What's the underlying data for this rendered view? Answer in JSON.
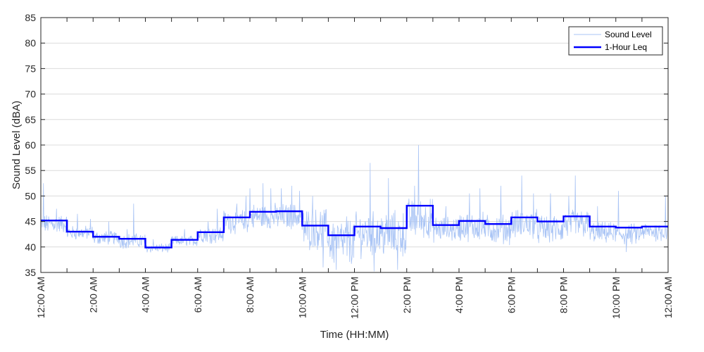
{
  "chart_data": {
    "type": "line",
    "title": "",
    "xlabel": "Time (HH:MM)",
    "ylabel": "Sound Level (dBA)",
    "xlim": [
      0,
      24
    ],
    "ylim": [
      35,
      85
    ],
    "x_unit": "hours since 12:00 AM",
    "y_ticks": [
      35,
      40,
      45,
      50,
      55,
      60,
      65,
      70,
      75,
      80,
      85
    ],
    "x_ticks": [
      0,
      2,
      4,
      6,
      8,
      10,
      12,
      14,
      16,
      18,
      20,
      22,
      24
    ],
    "x_tick_labels": [
      "12:00 AM",
      "2:00 AM",
      "4:00 AM",
      "6:00 AM",
      "8:00 AM",
      "10:00 AM",
      "12:00 PM",
      "2:00 PM",
      "4:00 PM",
      "6:00 PM",
      "8:00 PM",
      "10:00 PM",
      "12:00 AM"
    ],
    "grid": true,
    "legend_position": "top-right",
    "legend": [
      "Sound Level",
      "1-Hour Leq"
    ],
    "series": [
      {
        "name": "Sound Level",
        "type": "line",
        "color": "#a9c4f5",
        "hourly_profile": [
          {
            "hour": 0,
            "base": 44.5,
            "spread": 1.6,
            "spikes": [
              [
                0.1,
                52.5
              ],
              [
                0.6,
                47.5
              ]
            ]
          },
          {
            "hour": 1,
            "base": 42.8,
            "spread": 1.2,
            "spikes": [
              [
                0.4,
                46.5
              ],
              [
                0.9,
                45.5
              ]
            ]
          },
          {
            "hour": 2,
            "base": 41.8,
            "spread": 1.2,
            "spikes": [
              [
                0.6,
                45.0
              ]
            ]
          },
          {
            "hour": 3,
            "base": 41.2,
            "spread": 1.3,
            "spikes": [
              [
                0.55,
                48.5
              ],
              [
                0.3,
                43.5
              ]
            ]
          },
          {
            "hour": 4,
            "base": 39.8,
            "spread": 0.8,
            "spikes": [
              [
                0.3,
                41.5
              ]
            ]
          },
          {
            "hour": 5,
            "base": 41.2,
            "spread": 0.9,
            "spikes": [
              [
                0.5,
                43.5
              ]
            ]
          },
          {
            "hour": 6,
            "base": 42.5,
            "spread": 1.5,
            "spikes": [
              [
                0.4,
                45.0
              ],
              [
                0.75,
                47.5
              ]
            ]
          },
          {
            "hour": 7,
            "base": 45.0,
            "spread": 2.0,
            "spikes": [
              [
                0.5,
                48.5
              ],
              [
                0.85,
                50.0
              ]
            ]
          },
          {
            "hour": 8,
            "base": 46.0,
            "spread": 2.2,
            "spikes": [
              [
                0.0,
                51.5
              ],
              [
                0.5,
                52.5
              ],
              [
                0.8,
                51.5
              ]
            ]
          },
          {
            "hour": 9,
            "base": 46.0,
            "spread": 2.2,
            "spikes": [
              [
                0.2,
                51.5
              ],
              [
                0.6,
                52.0
              ],
              [
                0.9,
                51.0
              ]
            ]
          },
          {
            "hour": 10,
            "base": 43.5,
            "spread": 3.5,
            "spikes": [
              [
                0.4,
                50.0
              ],
              [
                0.8,
                36.0
              ]
            ]
          },
          {
            "hour": 11,
            "base": 41.0,
            "spread": 4.0,
            "spikes": [
              [
                0.3,
                35.5
              ],
              [
                0.7,
                46.0
              ]
            ]
          },
          {
            "hour": 12,
            "base": 42.5,
            "spread": 3.8,
            "spikes": [
              [
                0.6,
                56.5
              ],
              [
                0.75,
                35.2
              ]
            ]
          },
          {
            "hour": 13,
            "base": 42.5,
            "spread": 4.0,
            "spikes": [
              [
                0.3,
                53.5
              ],
              [
                0.65,
                35.5
              ]
            ]
          },
          {
            "hour": 14,
            "base": 45.5,
            "spread": 3.5,
            "spikes": [
              [
                0.45,
                60.0
              ],
              [
                0.3,
                52.0
              ]
            ]
          },
          {
            "hour": 15,
            "base": 43.5,
            "spread": 2.2,
            "spikes": [
              [
                0.5,
                48.0
              ]
            ]
          },
          {
            "hour": 16,
            "base": 44.0,
            "spread": 2.5,
            "spikes": [
              [
                0.4,
                50.5
              ],
              [
                0.8,
                51.5
              ]
            ]
          },
          {
            "hour": 17,
            "base": 43.5,
            "spread": 2.5,
            "spikes": [
              [
                0.6,
                52.0
              ]
            ]
          },
          {
            "hour": 18,
            "base": 44.5,
            "spread": 2.5,
            "spikes": [
              [
                0.4,
                54.0
              ],
              [
                0.85,
                50.5
              ]
            ]
          },
          {
            "hour": 19,
            "base": 43.5,
            "spread": 2.5,
            "spikes": [
              [
                0.5,
                50.5
              ]
            ]
          },
          {
            "hour": 20,
            "base": 44.5,
            "spread": 2.5,
            "spikes": [
              [
                0.45,
                54.0
              ],
              [
                0.2,
                50.0
              ]
            ]
          },
          {
            "hour": 21,
            "base": 42.8,
            "spread": 1.8,
            "spikes": [
              [
                0.3,
                48.0
              ]
            ]
          },
          {
            "hour": 22,
            "base": 42.5,
            "spread": 1.8,
            "spikes": [
              [
                0.1,
                51.0
              ],
              [
                0.4,
                39.0
              ]
            ]
          },
          {
            "hour": 23,
            "base": 43.0,
            "spread": 1.6,
            "spikes": [
              [
                0.9,
                50.0
              ]
            ]
          }
        ]
      },
      {
        "name": "1-Hour Leq",
        "type": "step",
        "color": "#0000ff",
        "x": [
          0,
          1,
          2,
          3,
          4,
          5,
          6,
          7,
          8,
          9,
          10,
          11,
          12,
          13,
          14,
          15,
          16,
          17,
          18,
          19,
          20,
          21,
          22,
          23
        ],
        "values": [
          45.2,
          43.0,
          42.0,
          41.6,
          39.9,
          41.4,
          42.9,
          45.8,
          46.9,
          47.0,
          44.2,
          42.3,
          44.0,
          43.7,
          48.1,
          44.3,
          45.1,
          44.5,
          45.8,
          45.0,
          46.0,
          44.0,
          43.8,
          44.0
        ]
      }
    ]
  }
}
